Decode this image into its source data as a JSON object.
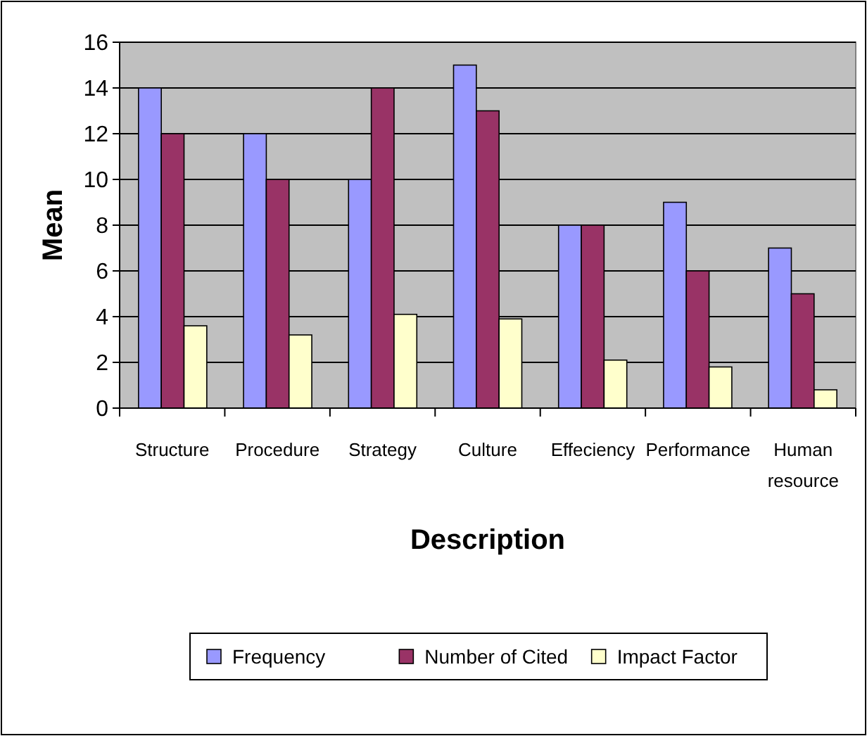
{
  "chart_data": {
    "type": "bar",
    "xlabel": "Description",
    "ylabel": "Mean",
    "categories": [
      "Structure",
      "Procedure",
      "Strategy",
      "Culture",
      "Effeciency",
      "Performance",
      "Human resource"
    ],
    "series": [
      {
        "name": "Frequency",
        "color": "#9999ff",
        "values": [
          14,
          12,
          10,
          15,
          8,
          9,
          7
        ]
      },
      {
        "name": "Number of Cited",
        "color": "#993366",
        "values": [
          12,
          10,
          14,
          13,
          8,
          6,
          5
        ]
      },
      {
        "name": "Impact Factor",
        "color": "#ffffcc",
        "values": [
          3.6,
          3.2,
          4.1,
          3.9,
          2.1,
          1.8,
          0.8
        ]
      }
    ],
    "ylim": [
      0,
      16
    ],
    "yticks": [
      0,
      2,
      4,
      6,
      8,
      10,
      12,
      14,
      16
    ],
    "grid": "y",
    "legend": "bottom"
  }
}
